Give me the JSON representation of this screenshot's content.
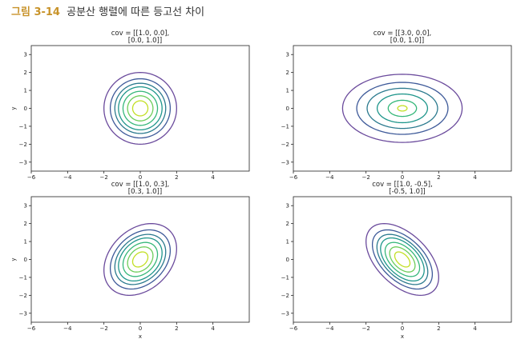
{
  "figure_caption": {
    "number": "그림 3-14",
    "text": "공분산 행렬에 따른 등고선 차이"
  },
  "chart_data": [
    {
      "type": "contour",
      "title_lines": [
        "cov = [[1.0, 0.0],",
        "[0.0, 1.0]]"
      ],
      "covariance": [
        [
          1.0,
          0.0
        ],
        [
          0.0,
          1.0
        ]
      ],
      "mean": [
        0,
        0
      ],
      "xlim": [
        -6,
        6
      ],
      "ylim": [
        -3.5,
        3.5
      ],
      "xticks": [
        -6,
        -4,
        -2,
        0,
        2,
        4
      ],
      "yticks": [
        -3,
        -2,
        -1,
        0,
        1,
        2,
        3
      ],
      "xlabel": "",
      "ylabel": "y",
      "grid": false,
      "contour_levels_mahalanobis": [
        2.0,
        1.65,
        1.4,
        1.2,
        0.95,
        0.7,
        0.42
      ],
      "colormap": [
        "#6a4a9c",
        "#3e5a99",
        "#2b7a8e",
        "#1f968b",
        "#35b779",
        "#6ccd5a",
        "#c2df23"
      ]
    },
    {
      "type": "contour",
      "title_lines": [
        "cov = [[3.0, 0.0],",
        "[0.0, 1.0]]"
      ],
      "covariance": [
        [
          3.0,
          0.0
        ],
        [
          0.0,
          1.0
        ]
      ],
      "mean": [
        0,
        0
      ],
      "xlim": [
        -6,
        6
      ],
      "ylim": [
        -3.5,
        3.5
      ],
      "xticks": [
        -6,
        -4,
        -2,
        0,
        2,
        4
      ],
      "yticks": [
        -3,
        -2,
        -1,
        0,
        1,
        2,
        3
      ],
      "xlabel": "",
      "ylabel": "",
      "grid": false,
      "contour_levels_mahalanobis": [
        1.9,
        1.45,
        1.12,
        0.8,
        0.45,
        0.15
      ],
      "colormap": [
        "#6a4a9c",
        "#3e5a99",
        "#2b7a8e",
        "#1f968b",
        "#35b779",
        "#c2df23"
      ]
    },
    {
      "type": "contour",
      "title_lines": [
        "cov = [[1.0, 0.3],",
        "[0.3, 1.0]]"
      ],
      "covariance": [
        [
          1.0,
          0.3
        ],
        [
          0.3,
          1.0
        ]
      ],
      "mean": [
        0,
        0
      ],
      "xlim": [
        -6,
        6
      ],
      "ylim": [
        -3.5,
        3.5
      ],
      "xticks": [
        -6,
        -4,
        -2,
        0,
        2,
        4
      ],
      "yticks": [
        -3,
        -2,
        -1,
        0,
        1,
        2,
        3
      ],
      "xlabel": "x",
      "ylabel": "y",
      "grid": false,
      "contour_levels_mahalanobis": [
        2.0,
        1.65,
        1.4,
        1.2,
        0.95,
        0.7,
        0.42
      ],
      "colormap": [
        "#6a4a9c",
        "#3e5a99",
        "#2b7a8e",
        "#1f968b",
        "#35b779",
        "#6ccd5a",
        "#c2df23"
      ]
    },
    {
      "type": "contour",
      "title_lines": [
        "cov = [[1.0, -0.5],",
        "[-0.5, 1.0]]"
      ],
      "covariance": [
        [
          1.0,
          -0.5
        ],
        [
          -0.5,
          1.0
        ]
      ],
      "mean": [
        0,
        0
      ],
      "xlim": [
        -6,
        6
      ],
      "ylim": [
        -3.5,
        3.5
      ],
      "xticks": [
        -6,
        -4,
        -2,
        0,
        2,
        4
      ],
      "yticks": [
        -3,
        -2,
        -1,
        0,
        1,
        2,
        3
      ],
      "xlabel": "x",
      "ylabel": "",
      "grid": false,
      "contour_levels_mahalanobis": [
        2.0,
        1.65,
        1.4,
        1.2,
        0.95,
        0.7,
        0.42
      ],
      "colormap": [
        "#6a4a9c",
        "#3e5a99",
        "#2b7a8e",
        "#1f968b",
        "#35b779",
        "#6ccd5a",
        "#c2df23"
      ]
    }
  ]
}
